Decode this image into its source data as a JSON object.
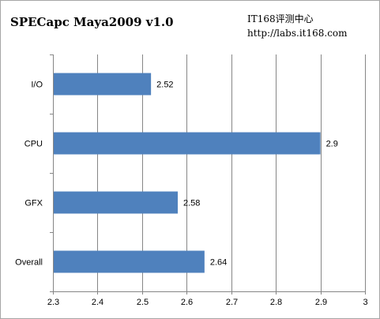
{
  "watermark": {
    "line1": "IT168评测中心",
    "line2": "http://labs.it168.com"
  },
  "colors": {
    "bar": "#4f81bd",
    "grid": "#868686",
    "axis": "#868686"
  },
  "chart_data": {
    "type": "bar",
    "orientation": "horizontal",
    "title": "SPECapc Maya2009 v1.0",
    "categories": [
      "I/O",
      "CPU",
      "GFX",
      "Overall"
    ],
    "values": [
      2.52,
      2.9,
      2.58,
      2.64
    ],
    "data_labels": [
      "2.52",
      "2.9",
      "2.58",
      "2.64"
    ],
    "xlim": [
      2.3,
      3.0
    ],
    "x_ticks": [
      "2.3",
      "2.4",
      "2.5",
      "2.6",
      "2.7",
      "2.8",
      "2.9",
      "3"
    ],
    "grid": true,
    "legend": "none"
  }
}
